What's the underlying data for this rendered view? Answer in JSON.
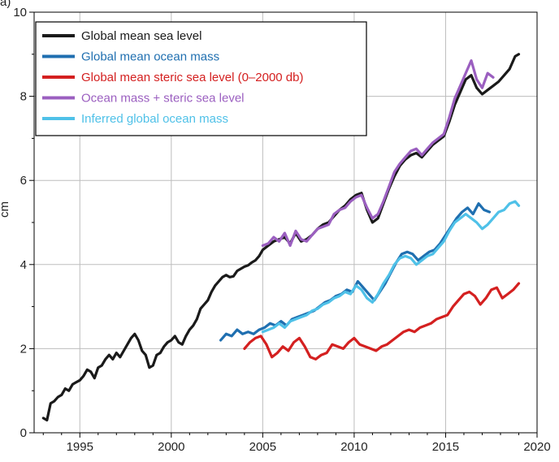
{
  "panel_label": "a)",
  "chart_data": {
    "type": "line",
    "title": "",
    "xlabel": "",
    "ylabel": "cm",
    "xlim": [
      1992.5,
      2020
    ],
    "ylim": [
      0,
      10
    ],
    "x_ticks": [
      1995,
      2000,
      2005,
      2010,
      2015,
      2020
    ],
    "x_tick_labels": [
      "1995",
      "2000",
      "2005",
      "2010",
      "2015",
      "2020"
    ],
    "y_ticks": [
      0,
      2,
      4,
      6,
      8,
      10
    ],
    "y_tick_labels": [
      "0",
      "2",
      "4",
      "6",
      "8",
      "10"
    ],
    "grid": true,
    "legend_position": "top-left",
    "series": [
      {
        "name": "Global mean sea level",
        "color": "#1a1a1a",
        "points": [
          [
            1993.0,
            0.35
          ],
          [
            1993.2,
            0.3
          ],
          [
            1993.4,
            0.7
          ],
          [
            1993.6,
            0.75
          ],
          [
            1993.8,
            0.85
          ],
          [
            1994.0,
            0.9
          ],
          [
            1994.2,
            1.05
          ],
          [
            1994.4,
            1.0
          ],
          [
            1994.6,
            1.15
          ],
          [
            1994.8,
            1.2
          ],
          [
            1995.0,
            1.25
          ],
          [
            1995.2,
            1.35
          ],
          [
            1995.4,
            1.5
          ],
          [
            1995.6,
            1.45
          ],
          [
            1995.8,
            1.3
          ],
          [
            1996.0,
            1.55
          ],
          [
            1996.2,
            1.6
          ],
          [
            1996.4,
            1.75
          ],
          [
            1996.6,
            1.85
          ],
          [
            1996.8,
            1.75
          ],
          [
            1997.0,
            1.9
          ],
          [
            1997.2,
            1.8
          ],
          [
            1997.4,
            1.95
          ],
          [
            1997.6,
            2.1
          ],
          [
            1997.8,
            2.25
          ],
          [
            1998.0,
            2.35
          ],
          [
            1998.2,
            2.2
          ],
          [
            1998.4,
            1.95
          ],
          [
            1998.6,
            1.85
          ],
          [
            1998.8,
            1.55
          ],
          [
            1999.0,
            1.6
          ],
          [
            1999.2,
            1.85
          ],
          [
            1999.4,
            1.9
          ],
          [
            1999.6,
            2.05
          ],
          [
            1999.8,
            2.15
          ],
          [
            2000.0,
            2.2
          ],
          [
            2000.2,
            2.3
          ],
          [
            2000.4,
            2.15
          ],
          [
            2000.6,
            2.1
          ],
          [
            2000.8,
            2.3
          ],
          [
            2001.0,
            2.45
          ],
          [
            2001.2,
            2.55
          ],
          [
            2001.4,
            2.7
          ],
          [
            2001.6,
            2.95
          ],
          [
            2001.8,
            3.05
          ],
          [
            2002.0,
            3.15
          ],
          [
            2002.2,
            3.35
          ],
          [
            2002.4,
            3.5
          ],
          [
            2002.6,
            3.6
          ],
          [
            2002.8,
            3.7
          ],
          [
            2003.0,
            3.75
          ],
          [
            2003.2,
            3.7
          ],
          [
            2003.4,
            3.72
          ],
          [
            2003.6,
            3.85
          ],
          [
            2003.8,
            3.9
          ],
          [
            2004.0,
            3.95
          ],
          [
            2004.2,
            3.98
          ],
          [
            2004.4,
            4.05
          ],
          [
            2004.6,
            4.1
          ],
          [
            2004.8,
            4.2
          ],
          [
            2005.0,
            4.35
          ],
          [
            2005.3,
            4.45
          ],
          [
            2005.6,
            4.55
          ],
          [
            2005.9,
            4.6
          ],
          [
            2006.2,
            4.65
          ],
          [
            2006.5,
            4.5
          ],
          [
            2006.8,
            4.75
          ],
          [
            2007.1,
            4.55
          ],
          [
            2007.4,
            4.6
          ],
          [
            2007.7,
            4.7
          ],
          [
            2008.0,
            4.85
          ],
          [
            2008.3,
            4.95
          ],
          [
            2008.6,
            5.0
          ],
          [
            2008.9,
            5.15
          ],
          [
            2009.2,
            5.3
          ],
          [
            2009.5,
            5.4
          ],
          [
            2009.8,
            5.55
          ],
          [
            2010.1,
            5.65
          ],
          [
            2010.4,
            5.7
          ],
          [
            2010.7,
            5.3
          ],
          [
            2011.0,
            5.0
          ],
          [
            2011.3,
            5.1
          ],
          [
            2011.6,
            5.45
          ],
          [
            2011.9,
            5.8
          ],
          [
            2012.2,
            6.1
          ],
          [
            2012.5,
            6.35
          ],
          [
            2012.8,
            6.5
          ],
          [
            2013.1,
            6.6
          ],
          [
            2013.4,
            6.65
          ],
          [
            2013.7,
            6.55
          ],
          [
            2014.0,
            6.7
          ],
          [
            2014.3,
            6.85
          ],
          [
            2014.6,
            6.95
          ],
          [
            2014.9,
            7.05
          ],
          [
            2015.2,
            7.4
          ],
          [
            2015.5,
            7.8
          ],
          [
            2015.8,
            8.1
          ],
          [
            2016.1,
            8.4
          ],
          [
            2016.4,
            8.5
          ],
          [
            2016.7,
            8.2
          ],
          [
            2017.0,
            8.05
          ],
          [
            2017.3,
            8.15
          ],
          [
            2017.6,
            8.25
          ],
          [
            2017.9,
            8.35
          ],
          [
            2018.2,
            8.5
          ],
          [
            2018.5,
            8.65
          ],
          [
            2018.8,
            8.95
          ],
          [
            2019.0,
            9.0
          ]
        ]
      },
      {
        "name": "Global mean ocean mass",
        "color": "#1f6fb0",
        "points": [
          [
            2002.7,
            2.2
          ],
          [
            2003.0,
            2.35
          ],
          [
            2003.3,
            2.3
          ],
          [
            2003.6,
            2.45
          ],
          [
            2003.9,
            2.35
          ],
          [
            2004.2,
            2.4
          ],
          [
            2004.5,
            2.35
          ],
          [
            2004.8,
            2.45
          ],
          [
            2005.1,
            2.5
          ],
          [
            2005.4,
            2.6
          ],
          [
            2005.7,
            2.55
          ],
          [
            2006.0,
            2.65
          ],
          [
            2006.3,
            2.55
          ],
          [
            2006.6,
            2.7
          ],
          [
            2006.9,
            2.75
          ],
          [
            2007.2,
            2.8
          ],
          [
            2007.5,
            2.85
          ],
          [
            2007.8,
            2.9
          ],
          [
            2008.1,
            3.0
          ],
          [
            2008.4,
            3.1
          ],
          [
            2008.7,
            3.15
          ],
          [
            2009.0,
            3.25
          ],
          [
            2009.3,
            3.3
          ],
          [
            2009.6,
            3.4
          ],
          [
            2009.9,
            3.35
          ],
          [
            2010.2,
            3.6
          ],
          [
            2010.5,
            3.45
          ],
          [
            2010.8,
            3.3
          ],
          [
            2011.1,
            3.15
          ],
          [
            2011.4,
            3.35
          ],
          [
            2011.7,
            3.55
          ],
          [
            2012.0,
            3.8
          ],
          [
            2012.3,
            4.05
          ],
          [
            2012.6,
            4.25
          ],
          [
            2012.9,
            4.3
          ],
          [
            2013.2,
            4.25
          ],
          [
            2013.5,
            4.1
          ],
          [
            2013.8,
            4.2
          ],
          [
            2014.1,
            4.3
          ],
          [
            2014.4,
            4.35
          ],
          [
            2014.7,
            4.5
          ],
          [
            2015.0,
            4.7
          ],
          [
            2015.3,
            4.9
          ],
          [
            2015.6,
            5.1
          ],
          [
            2015.9,
            5.25
          ],
          [
            2016.2,
            5.35
          ],
          [
            2016.5,
            5.2
          ],
          [
            2016.8,
            5.45
          ],
          [
            2017.1,
            5.3
          ],
          [
            2017.4,
            5.25
          ]
        ]
      },
      {
        "name": "Global mean steric sea level (0–2000 db)",
        "color": "#d42020",
        "points": [
          [
            2004.0,
            2.0
          ],
          [
            2004.3,
            2.15
          ],
          [
            2004.6,
            2.25
          ],
          [
            2004.9,
            2.3
          ],
          [
            2005.2,
            2.1
          ],
          [
            2005.5,
            1.8
          ],
          [
            2005.8,
            1.9
          ],
          [
            2006.1,
            2.05
          ],
          [
            2006.4,
            1.95
          ],
          [
            2006.7,
            2.15
          ],
          [
            2007.0,
            2.25
          ],
          [
            2007.3,
            2.05
          ],
          [
            2007.6,
            1.8
          ],
          [
            2007.9,
            1.75
          ],
          [
            2008.2,
            1.85
          ],
          [
            2008.5,
            1.9
          ],
          [
            2008.8,
            2.1
          ],
          [
            2009.1,
            2.05
          ],
          [
            2009.4,
            2.0
          ],
          [
            2009.7,
            2.15
          ],
          [
            2010.0,
            2.25
          ],
          [
            2010.3,
            2.1
          ],
          [
            2010.6,
            2.05
          ],
          [
            2010.9,
            2.0
          ],
          [
            2011.2,
            1.95
          ],
          [
            2011.5,
            2.05
          ],
          [
            2011.8,
            2.1
          ],
          [
            2012.1,
            2.2
          ],
          [
            2012.4,
            2.3
          ],
          [
            2012.7,
            2.4
          ],
          [
            2013.0,
            2.45
          ],
          [
            2013.3,
            2.4
          ],
          [
            2013.6,
            2.5
          ],
          [
            2013.9,
            2.55
          ],
          [
            2014.2,
            2.6
          ],
          [
            2014.5,
            2.7
          ],
          [
            2014.8,
            2.75
          ],
          [
            2015.1,
            2.8
          ],
          [
            2015.4,
            3.0
          ],
          [
            2015.7,
            3.15
          ],
          [
            2016.0,
            3.3
          ],
          [
            2016.3,
            3.35
          ],
          [
            2016.6,
            3.25
          ],
          [
            2016.9,
            3.05
          ],
          [
            2017.2,
            3.2
          ],
          [
            2017.5,
            3.4
          ],
          [
            2017.8,
            3.45
          ],
          [
            2018.1,
            3.2
          ],
          [
            2018.4,
            3.3
          ],
          [
            2018.7,
            3.4
          ],
          [
            2019.0,
            3.55
          ]
        ]
      },
      {
        "name": "Ocean mass + steric sea level",
        "color": "#9b5fc0",
        "points": [
          [
            2005.0,
            4.45
          ],
          [
            2005.3,
            4.5
          ],
          [
            2005.6,
            4.65
          ],
          [
            2005.9,
            4.55
          ],
          [
            2006.2,
            4.75
          ],
          [
            2006.5,
            4.45
          ],
          [
            2006.8,
            4.8
          ],
          [
            2007.1,
            4.6
          ],
          [
            2007.4,
            4.55
          ],
          [
            2007.7,
            4.7
          ],
          [
            2008.0,
            4.85
          ],
          [
            2008.3,
            4.9
          ],
          [
            2008.6,
            4.95
          ],
          [
            2008.9,
            5.2
          ],
          [
            2009.2,
            5.3
          ],
          [
            2009.5,
            5.35
          ],
          [
            2009.8,
            5.5
          ],
          [
            2010.1,
            5.6
          ],
          [
            2010.4,
            5.65
          ],
          [
            2010.7,
            5.35
          ],
          [
            2011.0,
            5.1
          ],
          [
            2011.3,
            5.2
          ],
          [
            2011.6,
            5.5
          ],
          [
            2011.9,
            5.85
          ],
          [
            2012.2,
            6.2
          ],
          [
            2012.5,
            6.4
          ],
          [
            2012.8,
            6.55
          ],
          [
            2013.1,
            6.7
          ],
          [
            2013.4,
            6.75
          ],
          [
            2013.7,
            6.6
          ],
          [
            2014.0,
            6.75
          ],
          [
            2014.3,
            6.9
          ],
          [
            2014.6,
            7.0
          ],
          [
            2014.9,
            7.1
          ],
          [
            2015.2,
            7.5
          ],
          [
            2015.5,
            7.95
          ],
          [
            2015.8,
            8.25
          ],
          [
            2016.1,
            8.55
          ],
          [
            2016.4,
            8.85
          ],
          [
            2016.7,
            8.4
          ],
          [
            2017.0,
            8.2
          ],
          [
            2017.3,
            8.55
          ],
          [
            2017.6,
            8.45
          ]
        ]
      },
      {
        "name": "Inferred global ocean mass",
        "color": "#4fc1e8",
        "points": [
          [
            2005.0,
            2.4
          ],
          [
            2005.3,
            2.45
          ],
          [
            2005.6,
            2.5
          ],
          [
            2005.9,
            2.6
          ],
          [
            2006.2,
            2.5
          ],
          [
            2006.5,
            2.65
          ],
          [
            2006.8,
            2.7
          ],
          [
            2007.1,
            2.75
          ],
          [
            2007.4,
            2.8
          ],
          [
            2007.7,
            2.9
          ],
          [
            2008.0,
            2.95
          ],
          [
            2008.3,
            3.05
          ],
          [
            2008.6,
            3.1
          ],
          [
            2008.9,
            3.2
          ],
          [
            2009.2,
            3.25
          ],
          [
            2009.5,
            3.35
          ],
          [
            2009.8,
            3.3
          ],
          [
            2010.1,
            3.5
          ],
          [
            2010.4,
            3.4
          ],
          [
            2010.7,
            3.2
          ],
          [
            2011.0,
            3.1
          ],
          [
            2011.3,
            3.3
          ],
          [
            2011.6,
            3.55
          ],
          [
            2011.9,
            3.75
          ],
          [
            2012.2,
            4.0
          ],
          [
            2012.5,
            4.15
          ],
          [
            2012.8,
            4.2
          ],
          [
            2013.1,
            4.15
          ],
          [
            2013.4,
            4.0
          ],
          [
            2013.7,
            4.1
          ],
          [
            2014.0,
            4.2
          ],
          [
            2014.3,
            4.25
          ],
          [
            2014.6,
            4.4
          ],
          [
            2014.9,
            4.55
          ],
          [
            2015.2,
            4.8
          ],
          [
            2015.5,
            5.0
          ],
          [
            2015.8,
            5.1
          ],
          [
            2016.1,
            5.2
          ],
          [
            2016.4,
            5.1
          ],
          [
            2016.7,
            5.0
          ],
          [
            2017.0,
            4.85
          ],
          [
            2017.3,
            4.95
          ],
          [
            2017.6,
            5.1
          ],
          [
            2017.9,
            5.25
          ],
          [
            2018.2,
            5.3
          ],
          [
            2018.5,
            5.45
          ],
          [
            2018.8,
            5.5
          ],
          [
            2019.0,
            5.4
          ]
        ]
      }
    ]
  }
}
